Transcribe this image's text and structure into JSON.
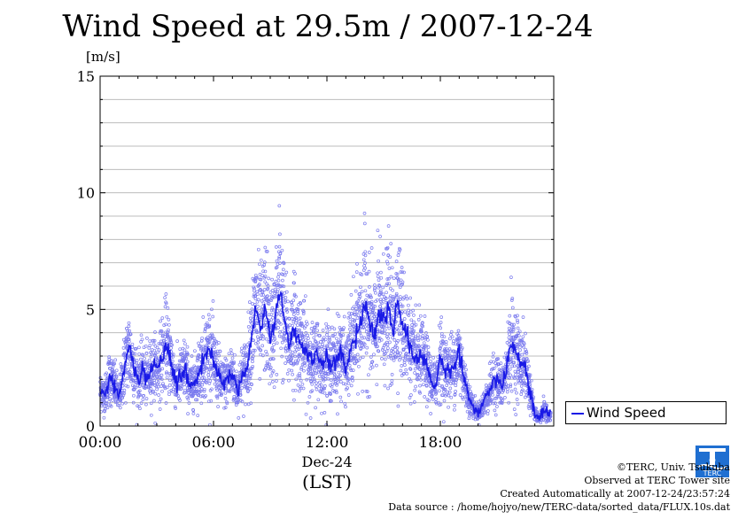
{
  "header": {
    "title": "Wind Speed at 29.5m / 2007-12-24",
    "unit": "[m/s]"
  },
  "legend": {
    "label": "Wind Speed"
  },
  "credits": {
    "line1": "©TERC, Univ. Tsukuba",
    "line2": "Observed at TERC Tower site",
    "line3": "Created Automatically at 2007-12-24/23:57:24",
    "line4": "Data source : /home/hojyo/new/TERC-data/sorted_data/FLUX.10s.dat"
  },
  "logo": {
    "icon": "terc-logo-icon",
    "text": "TERC"
  },
  "colors": {
    "line": "#1a1ae6",
    "scatter": "#7a7aee",
    "grid": "#bdbdbd"
  },
  "chart_data": {
    "type": "line",
    "ylim": [
      0,
      15
    ],
    "yticks": [
      "0",
      "5",
      "10",
      "15"
    ],
    "xlim": [
      "00:00",
      "24:00"
    ],
    "xticks": [
      "00:00",
      "06:00",
      "12:00",
      "18:00"
    ],
    "xlabel_date": "Dec-24",
    "xlabel_tz": "(LST)",
    "grid": true,
    "legend_position": "right",
    "series": [
      {
        "name": "Wind Speed",
        "x_hours": [
          0,
          0.25,
          0.5,
          0.75,
          1.0,
          1.25,
          1.5,
          1.75,
          2.0,
          2.25,
          2.5,
          2.75,
          3.0,
          3.25,
          3.5,
          3.75,
          4.0,
          4.25,
          4.5,
          4.75,
          5.0,
          5.25,
          5.5,
          5.75,
          6.0,
          6.25,
          6.5,
          6.75,
          7.0,
          7.25,
          7.5,
          7.75,
          8.0,
          8.25,
          8.5,
          8.75,
          9.0,
          9.25,
          9.5,
          9.75,
          10.0,
          10.25,
          10.5,
          10.75,
          11.0,
          11.25,
          11.5,
          11.75,
          12.0,
          12.25,
          12.5,
          12.75,
          13.0,
          13.25,
          13.5,
          13.75,
          14.0,
          14.25,
          14.5,
          14.75,
          15.0,
          15.25,
          15.5,
          15.75,
          16.0,
          16.25,
          16.5,
          16.75,
          17.0,
          17.25,
          17.5,
          17.75,
          18.0,
          18.25,
          18.5,
          18.75,
          19.0,
          19.25,
          19.5,
          19.75,
          20.0,
          20.25,
          20.5,
          20.75,
          21.0,
          21.25,
          21.5,
          21.75,
          22.0,
          22.25,
          22.5,
          22.75,
          23.0,
          23.25,
          23.5,
          23.75
        ],
        "values": [
          1.5,
          1.3,
          2.1,
          1.8,
          1.2,
          2.4,
          3.3,
          2.6,
          2.0,
          2.3,
          2.1,
          2.5,
          2.4,
          2.9,
          3.5,
          2.8,
          1.8,
          2.1,
          2.5,
          1.7,
          1.9,
          2.4,
          2.9,
          3.3,
          2.8,
          2.2,
          1.8,
          2.0,
          2.3,
          1.5,
          2.2,
          2.4,
          3.8,
          5.0,
          4.2,
          5.1,
          3.8,
          4.5,
          6.0,
          4.4,
          3.5,
          4.2,
          3.7,
          3.4,
          3.0,
          2.7,
          3.1,
          2.5,
          3.0,
          2.6,
          2.8,
          3.2,
          2.4,
          3.4,
          3.8,
          4.4,
          5.2,
          4.5,
          3.9,
          4.8,
          4.5,
          5.1,
          4.0,
          5.5,
          4.3,
          3.8,
          3.2,
          2.8,
          3.0,
          2.6,
          1.9,
          1.8,
          3.0,
          2.4,
          2.5,
          2.6,
          3.1,
          2.0,
          1.2,
          0.8,
          0.6,
          0.9,
          1.3,
          1.8,
          2.0,
          1.6,
          2.4,
          3.7,
          3.1,
          2.7,
          2.6,
          1.5,
          0.5,
          0.3,
          0.7,
          0.4
        ]
      }
    ]
  }
}
